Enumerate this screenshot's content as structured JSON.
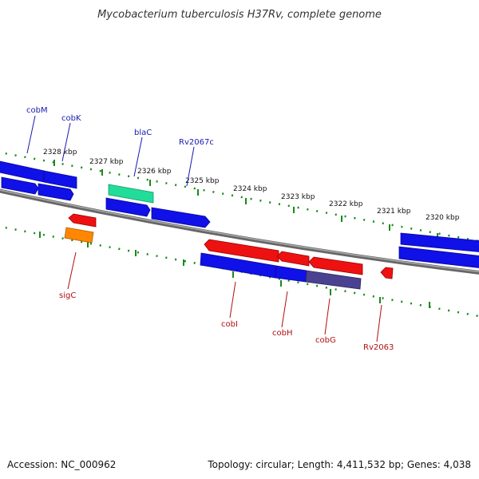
{
  "title": "Mycobacterium tuberculosis H37Rv, complete genome",
  "footer": {
    "accession": "Accession: NC_000962",
    "summary": "Topology: circular; Length: 4,411,532 bp; Genes: 4,038"
  },
  "colors": {
    "forward_gene": "#1010e8",
    "reverse_gene": "#ee1111",
    "highlight_gene": "#22dd99",
    "orange_gene": "#ff8800",
    "purple_gene": "#4a4290",
    "label_blue": "#1a1ab0",
    "label_red": "#b01010",
    "tick_green": "#1a8a1a",
    "backbone": "#808080"
  },
  "scale_labels_kbp": [
    "2328 kbp",
    "2327 kbp",
    "2326 kbp",
    "2325 kbp",
    "2324 kbp",
    "2323 kbp",
    "2322 kbp",
    "2321 kbp",
    "2320 kbp"
  ],
  "gene_labels": {
    "forward_strand": [
      "cobM",
      "cobK",
      "blaC",
      "Rv2067c"
    ],
    "reverse_strand": [
      "sigC",
      "cobI",
      "cobH",
      "cobG",
      "Rv2063"
    ]
  }
}
